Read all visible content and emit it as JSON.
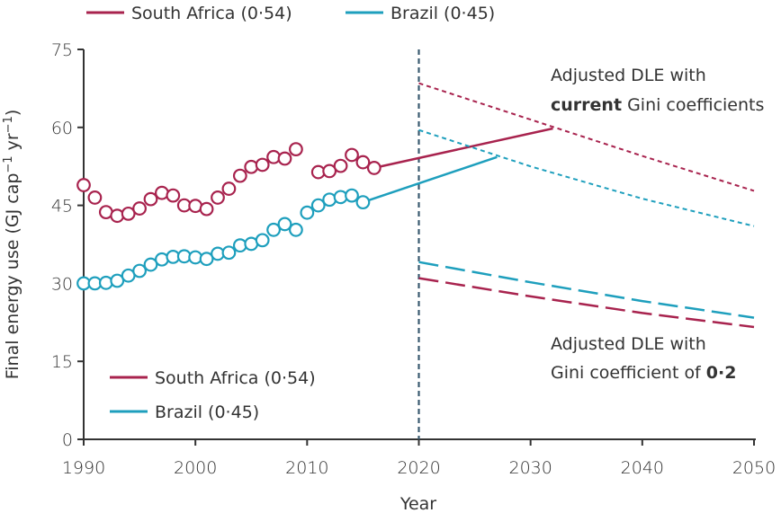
{
  "colors": {
    "south_africa": "#a8234e",
    "brazil": "#1e9fbd",
    "axis": "#333333",
    "divider": "#3a5a70"
  },
  "chart_data": {
    "type": "line",
    "title": "",
    "xlabel": "Year",
    "ylabel": "Final energy use (GJ cap",
    "ylabel_sup1": "−1",
    "ylabel_mid": " yr",
    "ylabel_sup2": "−1",
    "ylabel_end": ")",
    "xlim": [
      1990,
      2050
    ],
    "ylim": [
      0,
      75
    ],
    "x_ticks": [
      1990,
      2000,
      2010,
      2020,
      2030,
      2040,
      2050
    ],
    "y_ticks": [
      0,
      15,
      30,
      45,
      60,
      75
    ],
    "divider_year": 2020,
    "legend_top": [
      {
        "series": "south_africa",
        "label": "South Africa (0·54)"
      },
      {
        "series": "brazil",
        "label": "Brazil (0·45)"
      }
    ],
    "legend_bottom": [
      {
        "series": "south_africa",
        "label": "South Africa (0·54)"
      },
      {
        "series": "brazil",
        "label": "Brazil (0·45)"
      }
    ],
    "series": [
      {
        "name": "South Africa (0·54)",
        "key": "south_africa",
        "historical": [
          [
            1990,
            48.9
          ],
          [
            1991,
            46.5
          ],
          [
            1992,
            43.7
          ],
          [
            1993,
            43.0
          ],
          [
            1994,
            43.4
          ],
          [
            1995,
            44.4
          ],
          [
            1996,
            46.2
          ],
          [
            1997,
            47.4
          ],
          [
            1998,
            46.9
          ],
          [
            1999,
            45.0
          ],
          [
            2000,
            44.9
          ],
          [
            2001,
            44.3
          ],
          [
            2002,
            46.5
          ],
          [
            2003,
            48.2
          ],
          [
            2004,
            50.7
          ],
          [
            2005,
            52.4
          ],
          [
            2006,
            52.8
          ],
          [
            2007,
            54.3
          ],
          [
            2008,
            54.0
          ],
          [
            2009,
            55.8
          ],
          [
            2011,
            51.4
          ],
          [
            2012,
            51.6
          ],
          [
            2013,
            52.6
          ],
          [
            2014,
            54.7
          ],
          [
            2015,
            53.3
          ],
          [
            2016,
            52.2
          ]
        ],
        "projection_line": [
          [
            2016,
            52.2
          ],
          [
            2032,
            59.8
          ]
        ],
        "dle_current_gini": [
          [
            2020,
            68.5
          ],
          [
            2030,
            61.5
          ],
          [
            2040,
            54.5
          ],
          [
            2050,
            47.8
          ]
        ],
        "dle_gini_02": [
          [
            2020,
            31.0
          ],
          [
            2030,
            27.5
          ],
          [
            2040,
            24.3
          ],
          [
            2050,
            21.6
          ]
        ]
      },
      {
        "name": "Brazil (0·45)",
        "key": "brazil",
        "historical": [
          [
            1990,
            30.0
          ],
          [
            1991,
            30.0
          ],
          [
            1992,
            30.1
          ],
          [
            1993,
            30.5
          ],
          [
            1994,
            31.5
          ],
          [
            1995,
            32.4
          ],
          [
            1996,
            33.6
          ],
          [
            1997,
            34.6
          ],
          [
            1998,
            35.1
          ],
          [
            1999,
            35.2
          ],
          [
            2000,
            35.0
          ],
          [
            2001,
            34.7
          ],
          [
            2002,
            35.7
          ],
          [
            2003,
            35.9
          ],
          [
            2004,
            37.3
          ],
          [
            2005,
            37.6
          ],
          [
            2006,
            38.3
          ],
          [
            2007,
            40.3
          ],
          [
            2008,
            41.4
          ],
          [
            2009,
            40.3
          ],
          [
            2010,
            43.6
          ],
          [
            2011,
            45.0
          ],
          [
            2012,
            46.1
          ],
          [
            2013,
            46.6
          ],
          [
            2014,
            46.9
          ],
          [
            2015,
            45.6
          ]
        ],
        "projection_line": [
          [
            2015,
            45.6
          ],
          [
            2027,
            54.3
          ]
        ],
        "dle_current_gini": [
          [
            2020,
            59.5
          ],
          [
            2030,
            52.5
          ],
          [
            2040,
            46.3
          ],
          [
            2050,
            41.0
          ]
        ],
        "dle_gini_02": [
          [
            2020,
            34.1
          ],
          [
            2030,
            30.2
          ],
          [
            2040,
            26.6
          ],
          [
            2050,
            23.4
          ]
        ]
      }
    ],
    "annotations": [
      {
        "id": "current",
        "line1": "Adjusted DLE with",
        "line2_bold": "current",
        "line2_rest": " Gini coefficients"
      },
      {
        "id": "gini02",
        "line1": "Adjusted DLE with",
        "line2_rest": "Gini coefficient of ",
        "line2_bold": "0·2"
      }
    ]
  }
}
